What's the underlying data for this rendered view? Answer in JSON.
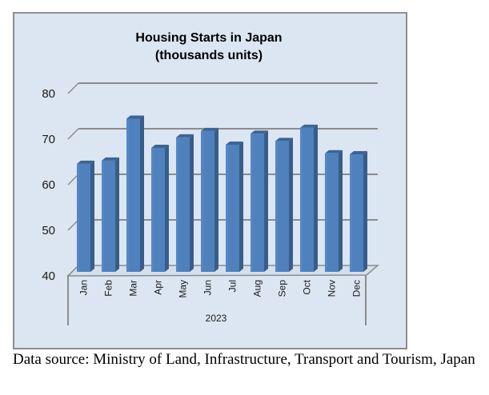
{
  "chart_data": {
    "type": "bar",
    "title": "Housing Starts in Japan",
    "subtitle": "(thousands units)",
    "xlabel": "2023",
    "ylabel": "",
    "categories": [
      "Jan",
      "Feb",
      "Mar",
      "Apr",
      "May",
      "Jun",
      "Jul",
      "Aug",
      "Sep",
      "Oct",
      "Nov",
      "Dec"
    ],
    "values": [
      63.7,
      64.4,
      73.6,
      67.2,
      69.5,
      70.9,
      67.9,
      70.3,
      68.7,
      71.6,
      66.0,
      65.8
    ],
    "ylim": [
      40,
      80
    ],
    "yticks": [
      40,
      50,
      60,
      70,
      80
    ],
    "ytick_labels": [
      "40",
      "50",
      "60",
      "70",
      "80"
    ],
    "grid": true,
    "style": "3d-column",
    "colors": {
      "front": "#4f81bd",
      "side": "#385d8a",
      "top": "#3c6496",
      "background": "#dce6f2",
      "grid": "#8c8c8c"
    }
  },
  "caption": "Data source: Ministry of Land, Infrastructure, Transport and Tourism, Japan"
}
